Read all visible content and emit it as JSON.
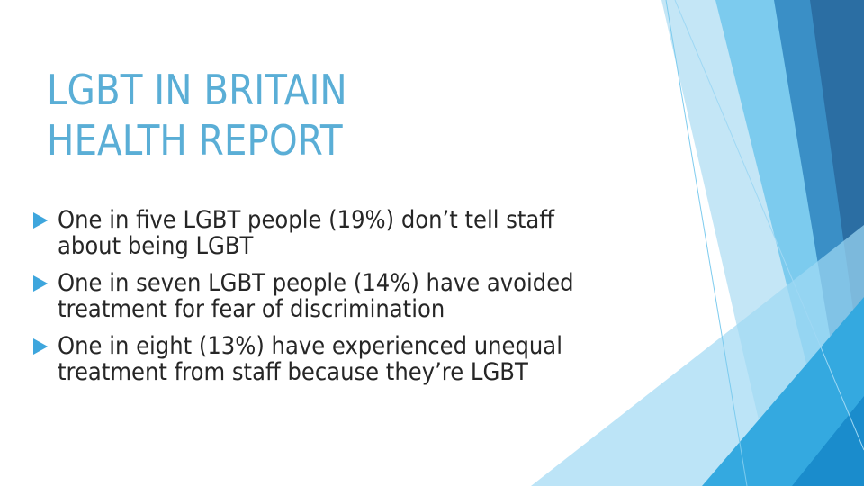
{
  "title": [
    "LGBT IN BRITAIN",
    "HEALTH REPORT"
  ],
  "bullets": [
    [
      "One in five LGBT people (19%) don’t tell staff",
      "about being LGBT"
    ],
    [
      "One in seven LGBT people (14%) have avoided",
      "treatment for fear of discrimination"
    ],
    [
      "One in eight (13%) have experienced unequal",
      "treatment from staff because they’re LGBT"
    ]
  ]
}
